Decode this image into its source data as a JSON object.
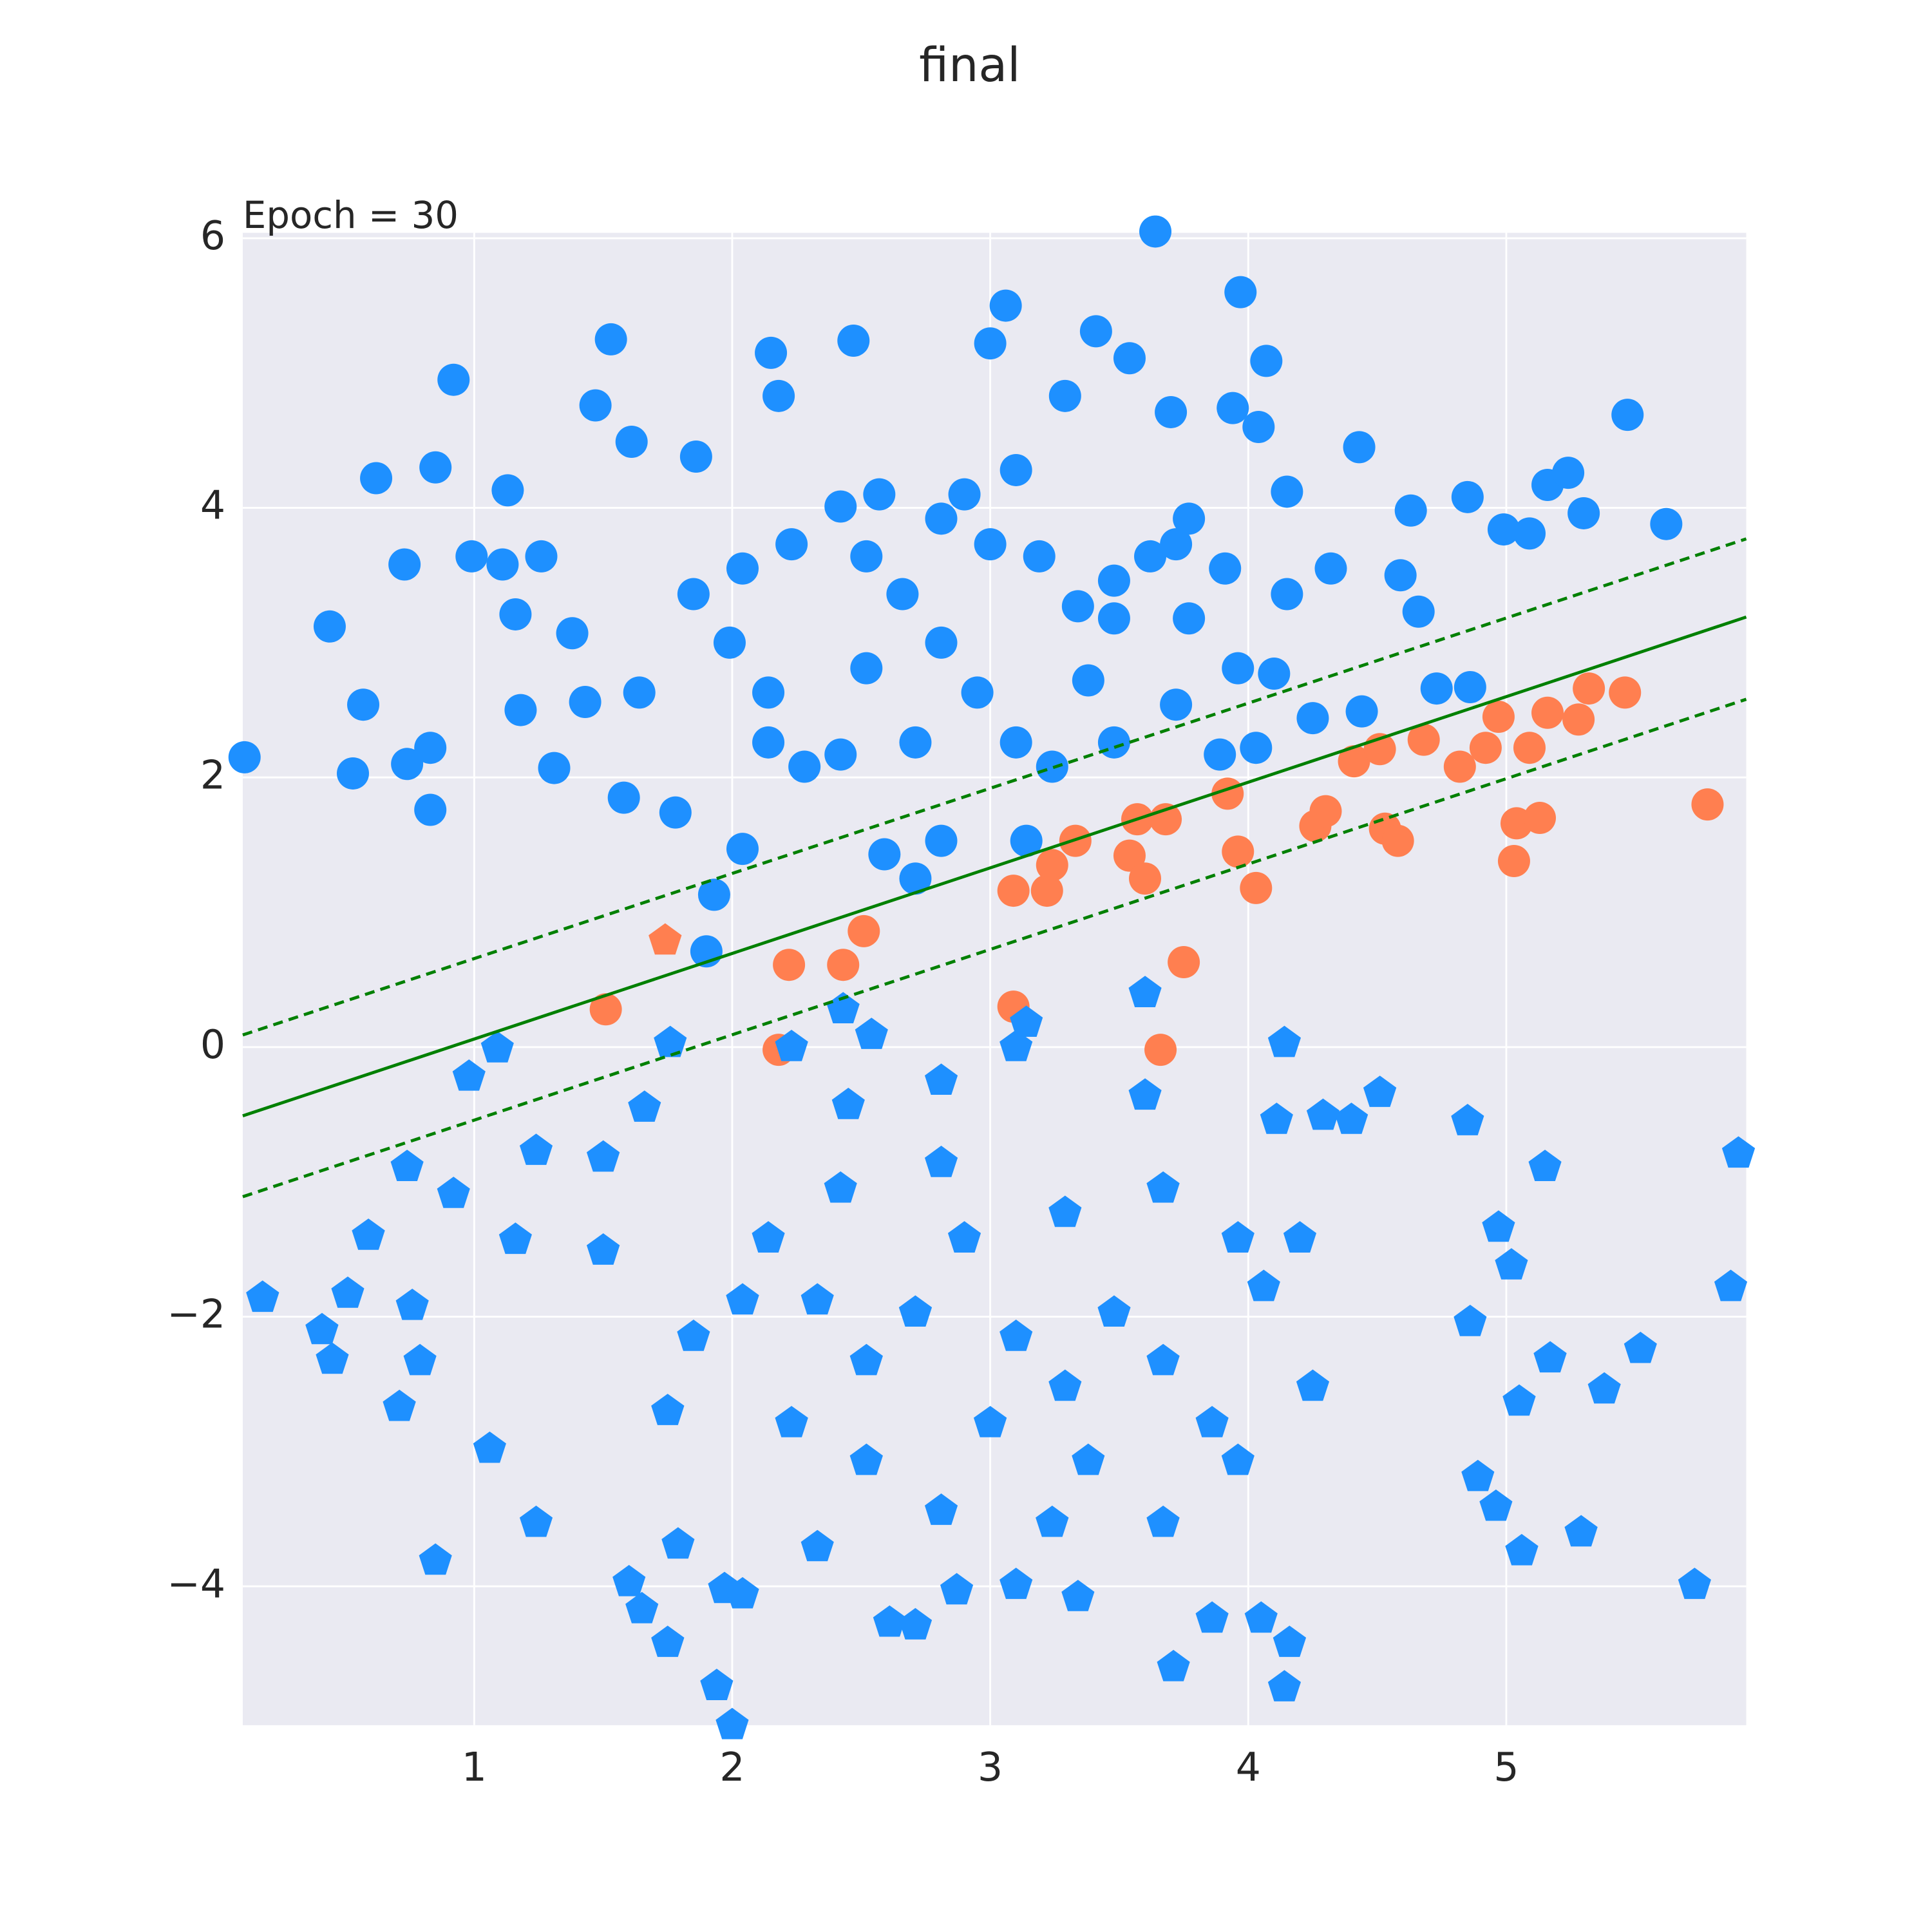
{
  "chart_data": {
    "type": "scatter",
    "title": "final",
    "annotation": "Epoch = 30",
    "xlim": [
      0.103,
      5.93
    ],
    "ylim": [
      -5.03,
      6.04
    ],
    "xticks": [
      1,
      2,
      3,
      4,
      5
    ],
    "yticks": [
      {
        "value": -4,
        "label": "−4"
      },
      {
        "value": -2,
        "label": "−2"
      },
      0,
      2,
      4,
      6
    ],
    "grid": true,
    "background": "#eaeaf2",
    "series": [
      {
        "marker": "circle",
        "color": "#1e90ff",
        "x": [
          0.11,
          0.44,
          0.57,
          0.53,
          0.62,
          0.73,
          0.74,
          0.83,
          0.83,
          0.85,
          0.92,
          0.99,
          1.11,
          1.13,
          1.16,
          1.18,
          1.26,
          1.31,
          1.38,
          1.43,
          1.47,
          1.53,
          1.61,
          1.64,
          1.58,
          1.78,
          1.86,
          1.93,
          1.9,
          2.04,
          2.15,
          2.18,
          2.47,
          2.59,
          2.71,
          2.81,
          3.0,
          3.06,
          3.14,
          3.29,
          3.41,
          3.54,
          3.64,
          3.7,
          3.97,
          3.94,
          4.07,
          4.04,
          4.15,
          4.43,
          4.32,
          4.63,
          4.85,
          4.99,
          5.09,
          5.16,
          5.24,
          5.3,
          5.47,
          5.62,
          4.86,
          4.73,
          4.66,
          4.59,
          4.44,
          4.25,
          4.1,
          4.03,
          3.89,
          3.77,
          3.62,
          3.48,
          3.38,
          3.24,
          3.1,
          2.95,
          2.81,
          2.66,
          2.52,
          2.42,
          2.28,
          2.14,
          1.99,
          1.85,
          2.04,
          2.23,
          2.42,
          2.57,
          2.81,
          3.0,
          3.19,
          3.34,
          3.48,
          3.72,
          3.91,
          4.15,
          3.77,
          3.1,
          2.9,
          2.52,
          2.14,
          2.71,
          3.48,
          3.72,
          3.96
        ],
        "y": [
          2.15,
          3.12,
          2.54,
          2.03,
          4.22,
          3.58,
          2.1,
          2.22,
          1.76,
          4.3,
          4.95,
          3.64,
          3.58,
          4.13,
          3.21,
          2.5,
          3.64,
          2.07,
          3.07,
          2.56,
          4.76,
          5.25,
          4.49,
          2.63,
          1.85,
          1.74,
          4.38,
          1.13,
          0.71,
          1.47,
          5.15,
          4.83,
          5.24,
          1.43,
          1.25,
          1.53,
          5.22,
          5.5,
          1.53,
          4.83,
          5.31,
          5.11,
          6.05,
          4.71,
          5.6,
          4.74,
          5.09,
          4.6,
          4.12,
          4.45,
          3.55,
          3.98,
          4.08,
          3.84,
          3.81,
          4.17,
          4.26,
          3.96,
          4.69,
          3.88,
          2.67,
          2.66,
          3.23,
          3.5,
          2.49,
          2.44,
          2.77,
          2.22,
          2.17,
          3.18,
          3.64,
          3.18,
          2.72,
          2.08,
          2.26,
          2.63,
          3.0,
          3.36,
          2.81,
          2.17,
          2.08,
          2.26,
          3.0,
          3.36,
          3.55,
          3.73,
          4.01,
          4.1,
          3.92,
          3.73,
          3.64,
          3.27,
          3.46,
          3.73,
          3.55,
          3.36,
          3.92,
          4.28,
          4.1,
          3.64,
          2.63,
          2.26,
          2.26,
          2.54,
          2.81
        ]
      },
      {
        "marker": "circle",
        "color": "#ff7f50",
        "x": [
          1.51,
          2.18,
          2.22,
          2.43,
          2.51,
          3.09,
          3.09,
          3.22,
          3.24,
          3.33,
          3.54,
          3.6,
          3.57,
          3.68,
          3.75,
          3.66,
          3.92,
          3.96,
          4.03,
          4.26,
          4.3,
          4.41,
          4.51,
          4.53,
          4.58,
          4.68,
          4.82,
          4.92,
          4.97,
          5.03,
          5.04,
          5.09,
          5.13,
          5.16,
          5.28,
          5.32,
          5.46,
          5.78
        ],
        "y": [
          0.28,
          -0.02,
          0.61,
          0.61,
          0.86,
          1.16,
          0.3,
          1.16,
          1.35,
          1.53,
          1.42,
          1.25,
          1.69,
          1.69,
          0.63,
          -0.02,
          1.88,
          1.45,
          1.18,
          1.64,
          1.75,
          2.12,
          2.21,
          1.62,
          1.53,
          2.28,
          2.08,
          2.22,
          2.45,
          1.38,
          1.66,
          2.22,
          1.7,
          2.48,
          2.43,
          2.66,
          2.63,
          1.8
        ]
      },
      {
        "marker": "pentagon",
        "color": "#1e90ff",
        "x": [
          0.18,
          0.41,
          0.45,
          0.51,
          0.59,
          0.71,
          0.74,
          0.76,
          0.79,
          0.85,
          0.92,
          0.98,
          1.09,
          1.06,
          1.16,
          1.24,
          1.24,
          1.5,
          1.5,
          1.66,
          1.6,
          1.65,
          1.75,
          1.76,
          1.79,
          1.94,
          2.0,
          1.97,
          2.04,
          2.23,
          2.43,
          2.45,
          2.54,
          2.81,
          3.1,
          3.14,
          3.6,
          3.6,
          4.14,
          4.11,
          4.29,
          4.4,
          4.51,
          4.85,
          5.15,
          5.9,
          5.87,
          5.52,
          5.38,
          5.29,
          5.73,
          5.06,
          5.05,
          5.17,
          5.02,
          4.97,
          4.86,
          4.89,
          4.96,
          3.71,
          4.14,
          4.16,
          4.05,
          3.86,
          3.34,
          2.87,
          2.61,
          2.71,
          3.1,
          2.14,
          2.33,
          2.52,
          2.71,
          2.9,
          3.1,
          3.29,
          3.48,
          3.67,
          3.86,
          4.06,
          4.25,
          2.23,
          2.52,
          2.81,
          1.85,
          1.75,
          2.04,
          2.42,
          2.81,
          3.29,
          3.67,
          3.96,
          4.2,
          3.38,
          3.96,
          3.0,
          2.33,
          3.24,
          3.67
        ],
        "y": [
          -1.86,
          -2.1,
          -2.32,
          -1.83,
          -1.4,
          -2.67,
          -0.89,
          -1.92,
          -2.33,
          -3.81,
          -1.09,
          -0.22,
          -0.01,
          -2.98,
          -1.43,
          -0.77,
          -3.53,
          -0.82,
          -1.51,
          -0.45,
          -3.97,
          -4.17,
          -4.42,
          0.03,
          -3.69,
          -4.74,
          -5.03,
          -4.02,
          -4.06,
          0.0,
          0.28,
          -0.43,
          0.09,
          -0.25,
          0.0,
          0.18,
          0.4,
          -0.36,
          0.03,
          -0.54,
          -0.51,
          -0.54,
          -0.34,
          -0.55,
          -0.89,
          -0.79,
          -1.78,
          -2.24,
          -2.54,
          -3.6,
          -3.99,
          -3.74,
          -2.63,
          -2.31,
          -1.62,
          -1.34,
          -2.04,
          -3.19,
          -3.41,
          -4.6,
          -4.75,
          -4.42,
          -4.24,
          -4.24,
          -4.08,
          -4.03,
          -4.27,
          -4.29,
          -3.99,
          -1.42,
          -1.88,
          -2.33,
          -1.97,
          -1.42,
          -2.15,
          -2.52,
          -1.97,
          -2.33,
          -2.79,
          -1.78,
          -2.52,
          -2.79,
          -3.07,
          -3.44,
          -2.15,
          -2.7,
          -1.88,
          -1.05,
          -0.86,
          -1.23,
          -1.05,
          -1.42,
          -1.42,
          -3.07,
          -3.07,
          -2.79,
          -3.71,
          -3.53,
          -3.53
        ]
      },
      {
        "marker": "pentagon",
        "color": "#ff7f50",
        "x": [
          1.74
        ],
        "y": [
          0.79
        ]
      }
    ],
    "lines": [
      {
        "x": [
          0.103,
          5.93
        ],
        "y": [
          0.09,
          3.77
        ],
        "color": "#008000",
        "style": "dashed"
      },
      {
        "x": [
          0.103,
          5.93
        ],
        "y": [
          -0.51,
          3.19
        ],
        "color": "#008000",
        "style": "solid"
      },
      {
        "x": [
          0.103,
          5.93
        ],
        "y": [
          -1.11,
          2.58
        ],
        "color": "#008000",
        "style": "dashed"
      }
    ]
  }
}
